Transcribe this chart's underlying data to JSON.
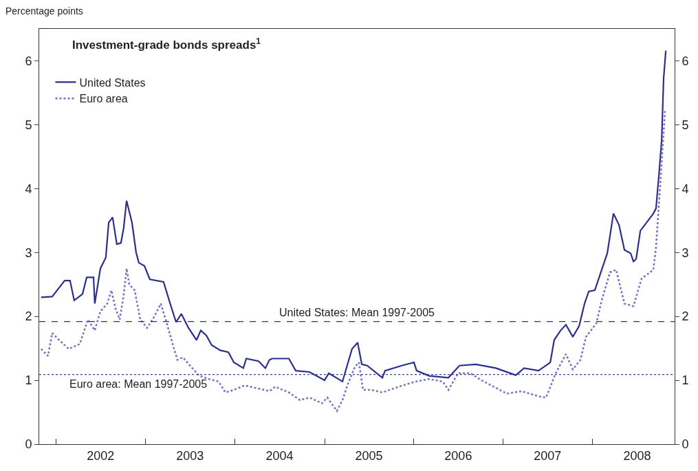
{
  "chart_data": {
    "type": "line",
    "title": "Investment-grade bonds spreads$^{1}$",
    "ylabel": "Percentage points",
    "xlim": [
      "2001-10-23",
      "2008-12-01"
    ],
    "xticks": [
      {
        "value": "2002-01-01",
        "label": null
      },
      {
        "value": "2002-07-01",
        "label": "2002"
      },
      {
        "value": "2003-01-01",
        "label": null
      },
      {
        "value": "2003-07-01",
        "label": "2003"
      },
      {
        "value": "2004-01-01",
        "label": null
      },
      {
        "value": "2004-07-01",
        "label": "2004"
      },
      {
        "value": "2005-01-01",
        "label": null
      },
      {
        "value": "2005-07-01",
        "label": "2005"
      },
      {
        "value": "2006-01-01",
        "label": null
      },
      {
        "value": "2006-07-01",
        "label": "2006"
      },
      {
        "value": "2007-01-01",
        "label": null
      },
      {
        "value": "2007-07-01",
        "label": "2007"
      },
      {
        "value": "2008-01-01",
        "label": null
      },
      {
        "value": "2008-07-01",
        "label": "2008"
      }
    ],
    "ylim": [
      0,
      6.5
    ],
    "yticks": [
      0,
      1,
      2,
      3,
      4,
      5,
      6
    ],
    "y2lim": [
      0,
      6.5
    ],
    "y2ticks": [
      0,
      1,
      2,
      3,
      4,
      5,
      6
    ],
    "legend": "top left",
    "marker": "none",
    "series": [
      {
        "name": "United States",
        "color": "#2b2e8c",
        "line_style": "solid",
        "x": [
          "2001-10-31",
          "2001-12-15",
          "2002-02-04",
          "2002-02-26",
          "2002-03-15",
          "2002-04-18",
          "2002-05-05",
          "2002-06-02",
          "2002-06-07",
          "2002-06-30",
          "2002-07-22",
          "2002-08-03",
          "2002-08-19",
          "2002-09-05",
          "2002-09-22",
          "2002-10-03",
          "2002-10-15",
          "2002-11-06",
          "2002-11-23",
          "2002-12-04",
          "2002-12-27",
          "2003-01-18",
          "2003-03-15",
          "2003-04-07",
          "2003-05-05",
          "2003-05-27",
          "2003-06-25",
          "2003-07-28",
          "2003-08-14",
          "2003-09-06",
          "2003-09-28",
          "2003-11-01",
          "2003-12-05",
          "2003-12-27",
          "2004-02-04",
          "2004-02-16",
          "2004-04-06",
          "2004-05-04",
          "2004-05-21",
          "2004-06-01",
          "2004-08-08",
          "2004-09-05",
          "2004-10-31",
          "2005-01-01",
          "2005-01-18",
          "2005-03-15",
          "2005-04-23",
          "2005-05-16",
          "2005-06-02",
          "2005-06-24",
          "2005-08-25",
          "2005-09-05",
          "2005-11-12",
          "2006-01-01",
          "2006-01-12",
          "2006-03-04",
          "2006-05-22",
          "2006-07-06",
          "2006-09-11",
          "2006-11-06",
          "2006-12-02",
          "2007-02-21",
          "2007-03-27",
          "2007-05-25",
          "2007-07-12",
          "2007-07-28",
          "2007-08-23",
          "2007-09-14",
          "2007-10-12",
          "2007-11-07",
          "2007-11-29",
          "2007-12-16",
          "2008-01-10",
          "2008-03-01",
          "2008-03-26",
          "2008-04-18",
          "2008-05-10",
          "2008-06-04",
          "2008-06-16",
          "2008-06-27",
          "2008-07-14",
          "2008-09-05",
          "2008-09-16",
          "2008-09-28",
          "2008-10-09",
          "2008-10-17",
          "2008-10-26"
        ],
        "values": [
          2.3,
          2.31,
          2.56,
          2.56,
          2.25,
          2.35,
          2.61,
          2.61,
          2.2,
          2.75,
          2.92,
          3.47,
          3.55,
          3.13,
          3.15,
          3.38,
          3.81,
          3.47,
          3.0,
          2.84,
          2.79,
          2.58,
          2.54,
          2.25,
          1.91,
          2.04,
          1.82,
          1.63,
          1.78,
          1.7,
          1.55,
          1.47,
          1.44,
          1.28,
          1.19,
          1.34,
          1.3,
          1.19,
          1.32,
          1.34,
          1.34,
          1.15,
          1.13,
          1.0,
          1.11,
          0.98,
          1.49,
          1.59,
          1.25,
          1.23,
          1.04,
          1.15,
          1.23,
          1.28,
          1.15,
          1.07,
          1.04,
          1.23,
          1.25,
          1.21,
          1.19,
          1.08,
          1.19,
          1.15,
          1.28,
          1.63,
          1.78,
          1.87,
          1.68,
          1.85,
          2.2,
          2.39,
          2.41,
          2.99,
          3.61,
          3.43,
          3.04,
          2.99,
          2.86,
          2.9,
          3.34,
          3.61,
          3.69,
          4.22,
          4.75,
          5.72,
          6.16
        ]
      },
      {
        "name": "Euro area",
        "color": "#7b73c6",
        "line_style": "dotted",
        "x": [
          "2001-10-31",
          "2001-11-28",
          "2001-12-15",
          "2002-01-18",
          "2002-02-21",
          "2002-04-07",
          "2002-05-10",
          "2002-06-07",
          "2002-06-30",
          "2002-07-28",
          "2002-08-14",
          "2002-08-31",
          "2002-09-17",
          "2002-10-03",
          "2002-10-15",
          "2002-10-26",
          "2002-11-17",
          "2002-12-10",
          "2003-01-07",
          "2003-02-04",
          "2003-03-04",
          "2003-03-27",
          "2003-04-24",
          "2003-05-11",
          "2003-06-02",
          "2003-07-06",
          "2003-08-08",
          "2003-09-17",
          "2003-10-26",
          "2003-11-23",
          "2003-12-27",
          "2004-02-10",
          "2004-03-26",
          "2004-05-21",
          "2004-06-13",
          "2004-08-08",
          "2004-09-22",
          "2004-10-31",
          "2004-12-21",
          "2005-01-12",
          "2005-02-20",
          "2005-03-15",
          "2005-04-06",
          "2005-05-05",
          "2005-05-21",
          "2005-06-07",
          "2005-07-11",
          "2005-08-25",
          "2005-10-31",
          "2006-01-07",
          "2006-03-04",
          "2006-04-29",
          "2006-05-22",
          "2006-06-30",
          "2006-08-20",
          "2006-10-04",
          "2007-01-16",
          "2007-03-16",
          "2007-05-25",
          "2007-06-25",
          "2007-08-03",
          "2007-09-14",
          "2007-10-12",
          "2007-11-12",
          "2007-12-05",
          "2008-01-16",
          "2008-02-07",
          "2008-03-12",
          "2008-04-06",
          "2008-05-10",
          "2008-06-16",
          "2008-07-19",
          "2008-09-05",
          "2008-09-16",
          "2008-10-03",
          "2008-10-23"
        ],
        "values": [
          1.49,
          1.38,
          1.74,
          1.61,
          1.49,
          1.57,
          1.95,
          1.78,
          2.08,
          2.2,
          2.41,
          2.12,
          1.95,
          2.33,
          2.75,
          2.5,
          2.41,
          1.95,
          1.82,
          1.99,
          2.2,
          1.91,
          1.53,
          1.32,
          1.36,
          1.21,
          1.07,
          1.02,
          0.98,
          0.81,
          0.85,
          0.92,
          0.88,
          0.83,
          0.9,
          0.81,
          0.69,
          0.73,
          0.64,
          0.73,
          0.52,
          0.69,
          0.94,
          1.21,
          1.28,
          0.85,
          0.85,
          0.81,
          0.9,
          0.98,
          1.02,
          0.98,
          0.85,
          1.11,
          1.11,
          1.0,
          0.79,
          0.83,
          0.75,
          0.73,
          1.11,
          1.41,
          1.17,
          1.32,
          1.68,
          1.89,
          2.25,
          2.69,
          2.73,
          2.2,
          2.16,
          2.59,
          2.73,
          3.08,
          4.05,
          5.23
        ]
      }
    ],
    "ref_lines": [
      {
        "axis": "y",
        "value": 1.92,
        "label": "United States: Mean 1997-2005",
        "color": "#2b2e8c",
        "line_style": "dashed"
      },
      {
        "axis": "y",
        "value": 1.09,
        "label": "Euro area: Mean 1997-2005",
        "color": "#3a3ab0",
        "line_style": "dotted"
      }
    ]
  }
}
